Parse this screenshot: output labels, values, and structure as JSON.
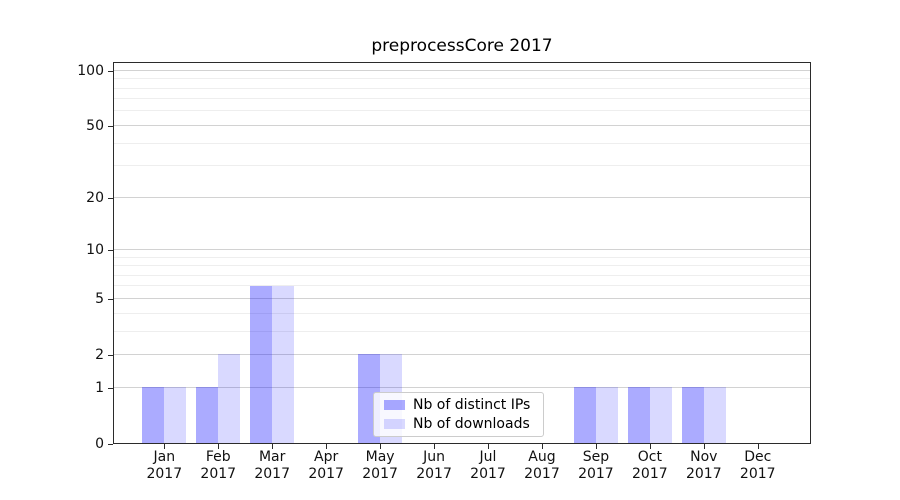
{
  "title": "preprocessCore 2017",
  "legend": {
    "items": [
      {
        "label": "Nb of distinct IPs",
        "color": "rgba(0,0,255,0.33)"
      },
      {
        "label": "Nb of downloads",
        "color": "rgba(0,0,255,0.15)"
      }
    ]
  },
  "chart_data": {
    "type": "bar",
    "title": "preprocessCore 2017",
    "xlabel": "",
    "ylabel": "",
    "yscale": "log10(1+y)",
    "ylim": [
      0,
      112
    ],
    "y_ticks": [
      0,
      1,
      2,
      5,
      10,
      20,
      50,
      100
    ],
    "y_minor_ticks": [
      3,
      4,
      6,
      7,
      8,
      9,
      30,
      40,
      60,
      70,
      80,
      90
    ],
    "grid": {
      "enabled": true,
      "major_color": "#d2d2d2",
      "minor_color": "#eeeeee"
    },
    "legend_position": "inside lower-center-left",
    "categories": [
      "Jan 2017",
      "Feb 2017",
      "Mar 2017",
      "Apr 2017",
      "May 2017",
      "Jun 2017",
      "Jul 2017",
      "Aug 2017",
      "Sep 2017",
      "Oct 2017",
      "Nov 2017",
      "Dec 2017"
    ],
    "series": [
      {
        "name": "Nb of distinct IPs",
        "color": "rgba(0,0,255,0.33)",
        "values": [
          1,
          1,
          6,
          0,
          2,
          0,
          0,
          0,
          1,
          1,
          1,
          0
        ]
      },
      {
        "name": "Nb of downloads",
        "color": "rgba(0,0,255,0.15)",
        "values": [
          1,
          2,
          6,
          0,
          2,
          0,
          0,
          0,
          1,
          1,
          1,
          0
        ]
      }
    ]
  }
}
